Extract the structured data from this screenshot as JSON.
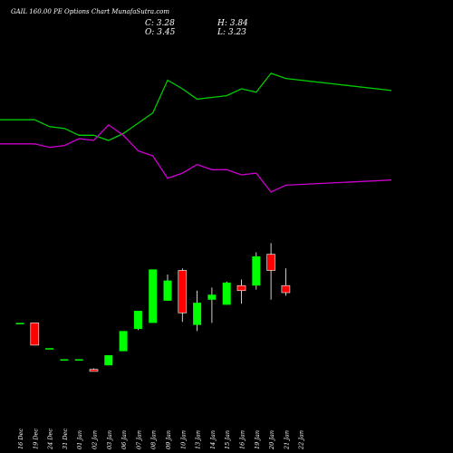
{
  "chart_data": {
    "type": "candlestick",
    "title": "GAIL 160.00 PE Options Chart MunafaSutra.com",
    "ohlc_readout": {
      "close": "C: 3.28",
      "open": "O: 3.45",
      "high": "H: 3.84",
      "low": "L: 3.23"
    },
    "categories": [
      "16 Dec",
      "19 Dec",
      "24 Dec",
      "31 Dec",
      "01 Jan",
      "02 Jan",
      "03 Jan",
      "06 Jan",
      "07 Jan",
      "08 Jan",
      "09 Jan",
      "10 Jan",
      "13 Jan",
      "14 Jan",
      "15 Jan",
      "16 Jan",
      "19 Jan",
      "20 Jan",
      "21 Jan",
      "22 Jan"
    ],
    "candles": [
      {
        "o": 3.2,
        "h": 3.2,
        "l": 3.2,
        "c": 3.2
      },
      {
        "o": 3.2,
        "h": 3.2,
        "l": 2.98,
        "c": 2.98
      },
      {
        "o": 2.95,
        "h": 2.95,
        "l": 2.95,
        "c": 2.95
      },
      {
        "o": 2.84,
        "h": 2.84,
        "l": 2.84,
        "c": 2.84
      },
      {
        "o": 2.84,
        "h": 2.84,
        "l": 2.84,
        "c": 2.84
      },
      {
        "o": 2.74,
        "h": 2.75,
        "l": 2.72,
        "c": 2.72
      },
      {
        "o": 2.78,
        "h": 2.88,
        "l": 2.78,
        "c": 2.88
      },
      {
        "o": 2.92,
        "h": 3.12,
        "l": 2.92,
        "c": 3.12
      },
      {
        "o": 3.14,
        "h": 3.32,
        "l": 3.13,
        "c": 3.32
      },
      {
        "o": 3.2,
        "h": 3.73,
        "l": 3.2,
        "c": 3.73
      },
      {
        "o": 3.42,
        "h": 3.68,
        "l": 3.42,
        "c": 3.62
      },
      {
        "o": 3.72,
        "h": 3.74,
        "l": 3.21,
        "c": 3.3
      },
      {
        "o": 3.18,
        "h": 3.52,
        "l": 3.12,
        "c": 3.4
      },
      {
        "o": 3.43,
        "h": 3.55,
        "l": 3.2,
        "c": 3.48
      },
      {
        "o": 3.38,
        "h": 3.61,
        "l": 3.38,
        "c": 3.6
      },
      {
        "o": 3.57,
        "h": 3.63,
        "l": 3.39,
        "c": 3.52
      },
      {
        "o": 3.57,
        "h": 3.9,
        "l": 3.53,
        "c": 3.86
      },
      {
        "o": 3.88,
        "h": 3.99,
        "l": 3.43,
        "c": 3.72
      },
      {
        "o": 3.57,
        "h": 3.74,
        "l": 3.47,
        "c": 3.5
      },
      {
        "o": null,
        "h": null,
        "l": null,
        "c": null
      }
    ],
    "indicators": [
      {
        "color": "#00cc00",
        "values": [
          62,
          62,
          58,
          57,
          53,
          53,
          50,
          54,
          60,
          66,
          85,
          80,
          74,
          75,
          76,
          80,
          78,
          89,
          86,
          79
        ]
      },
      {
        "color": "#cc00cc",
        "values": [
          48,
          48,
          46,
          47,
          51,
          50,
          59,
          53,
          44,
          41,
          28,
          31,
          36,
          33,
          33,
          30,
          31,
          20,
          24,
          27
        ]
      }
    ],
    "colors": {
      "up": "#00ff00",
      "down": "#ff0000",
      "background": "#000000",
      "text": "#ffffff"
    },
    "grid": false,
    "legend": "none"
  }
}
